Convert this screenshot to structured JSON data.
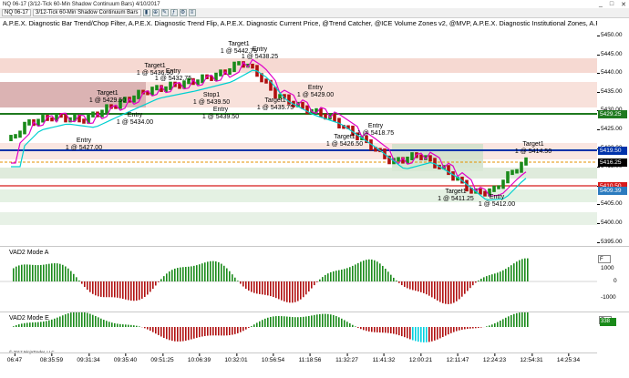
{
  "window": {
    "title": "NQ 06-17 (3/12-Tick 60-Min Shadow Continuum Bars)  4/10/2017",
    "controls": [
      "_",
      "□",
      "✕"
    ]
  },
  "toolbar": {
    "instrument": "NQ 06-17",
    "bar_type": "3/12-Tick 60-Min Shadow Continuum Bars"
  },
  "indicators_line": "A.P.E.X. Diagnostic Bar Trend/Chop Filter, A.P.E.X. Diagnostic Trend Flip, A.P.E.X. Diagnostic Current Price, @Trend Catcher, @ICE Volume Zones v2, @MVP, A.P.E.X. Diagnostic Institutional Zones, A.P.E.X. D",
  "price_axis": {
    "ticks": [
      "5450.00",
      "5445.00",
      "5440.00",
      "5435.00",
      "5430.00",
      "5425.00",
      "5420.00",
      "5415.00",
      "5410.00",
      "5405.00",
      "5400.00",
      "5395.00"
    ],
    "flags": [
      {
        "label": "5429.25",
        "color": "#1f7a1f"
      },
      {
        "label": "5419.50",
        "color": "#0033aa"
      },
      {
        "label": "5416.25",
        "color": "#000000"
      },
      {
        "label": "5410.50",
        "color": "#d81b1b"
      },
      {
        "label": "5409.39",
        "color": "#2b7bbf"
      }
    ]
  },
  "annotations": [
    {
      "text": "Target1",
      "sub": "1 @ 5442.75"
    },
    {
      "text": "Entry",
      "sub": "1 @ 5438.25"
    },
    {
      "text": "Target1",
      "sub": "1 @ 5436.50"
    },
    {
      "text": "Entry",
      "sub": "1 @ 5432.75"
    },
    {
      "text": "Target1",
      "sub": "1 @ 5429.50"
    },
    {
      "text": "Entry",
      "sub": "1 @ 5434.00"
    },
    {
      "text": "Entry",
      "sub": "1 @ 5427.00"
    },
    {
      "text": "Stop1",
      "sub": "1 @ 5439.50"
    },
    {
      "text": "Entry",
      "sub": "1 @ 5439.50"
    },
    {
      "text": "Target1",
      "sub": "1 @ 5435.75"
    },
    {
      "text": "Entry",
      "sub": "1 @ 5429.00"
    },
    {
      "text": "Target1",
      "sub": "1 @ 5426.50"
    },
    {
      "text": "Entry",
      "sub": "1 @ 5418.75"
    },
    {
      "text": "Target1",
      "sub": "1 @ 5414.50"
    },
    {
      "text": "Target1",
      "sub": "1 @ 5411.25"
    },
    {
      "text": "Entry",
      "sub": "1 @ 5412.00"
    }
  ],
  "panels": {
    "mode_a": {
      "label": "VAD2 Mode A",
      "axis": [
        "1000",
        "0",
        "-1000"
      ]
    },
    "mode_e": {
      "label": "VAD2 Mode E",
      "axis": [
        "338"
      ]
    }
  },
  "time_axis": [
    "06:47",
    "08:35:59",
    "09:31:34",
    "09:35:40",
    "09:51:25",
    "10:06:39",
    "10:32:01",
    "10:56:54",
    "11:18:56",
    "11:32:27",
    "11:41:32",
    "12:00:21",
    "12:11:47",
    "12:24:23",
    "12:54:31",
    "14:25:34"
  ],
  "copyright": "© 2017 NinjaTrader, LLC",
  "colors": {
    "up_bar": "#1a8a1a",
    "down_bar": "#b01010",
    "green_line": "#1f7a1f",
    "blue_line": "#0033aa",
    "red_line": "#d81b1b",
    "magenta_line": "#e000c8",
    "cyan_line": "#00d0d0",
    "blue_dots": "#3a6ae0"
  }
}
